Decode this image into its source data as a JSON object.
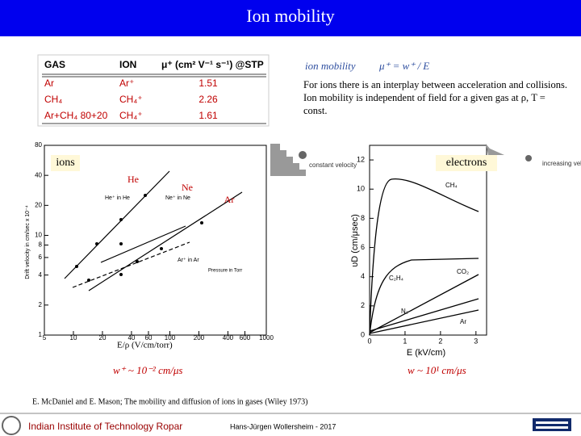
{
  "header": {
    "title": "Ion mobility"
  },
  "table": {
    "columns": [
      "GAS",
      "ION",
      "μ⁺ (cm² V⁻¹ s⁻¹) @STP"
    ],
    "rows": [
      [
        "Ar",
        "Ar⁺",
        "1.51"
      ],
      [
        "CH₄",
        "CH₄⁺",
        "2.26"
      ],
      [
        "Ar+CH₄ 80+20",
        "CH₄⁺",
        "1.61"
      ]
    ]
  },
  "formula": {
    "label": "ion mobility",
    "equation": "μ⁺ = w⁺ / E"
  },
  "note": "For ions there is an interplay between acceleration and collisions. Ion mobility is independent of field for a given gas at ρ, T = const.",
  "left_plot": {
    "tag": "ions",
    "gas_labels": [
      "He",
      "Ne",
      "Ar"
    ],
    "inset": "constant velocity",
    "curve_labels": [
      "He⁺ in He",
      "Ne⁺ in Ne",
      "Ar⁺ in Ar"
    ],
    "legend_title": "Pressure in Torr",
    "y_label": "Drift velocity in cm/sec x 10⁻⁴",
    "x_label": "E/ρ (V/cm/torr)",
    "xlim": [
      5,
      1000
    ],
    "xticks": [
      5,
      10,
      20,
      40,
      60,
      100,
      200,
      400,
      600,
      1000
    ],
    "ylim": [
      1,
      80
    ],
    "yticks": [
      1,
      2,
      4,
      6,
      8,
      10,
      20,
      40,
      80
    ]
  },
  "right_plot": {
    "tag": "electrons",
    "inset": "increasing velocity",
    "curve_labels": [
      "CH₄",
      "C₂H₄",
      "CO₂",
      "N₂",
      "Ar"
    ],
    "y_label": "υD (cm/μsec)",
    "x_label": "E (kV/cm)",
    "xlim": [
      0,
      3.3
    ],
    "xticks": [
      0,
      1,
      2,
      3
    ],
    "ylim": [
      0,
      13
    ],
    "yticks": [
      0,
      2,
      4,
      6,
      8,
      10,
      12
    ]
  },
  "speeds": {
    "ion": "w⁺ ~ 10⁻² cm/μs",
    "electron": "w ~ 10¹ cm/μs"
  },
  "reference": "E. McDaniel and E. Mason; The mobility and diffusion of ions in gases (Wiley 1973)",
  "footer": {
    "institute": "Indian Institute of Technology Ropar",
    "author": "Hans-Jürgen Wollersheim - 2017"
  }
}
